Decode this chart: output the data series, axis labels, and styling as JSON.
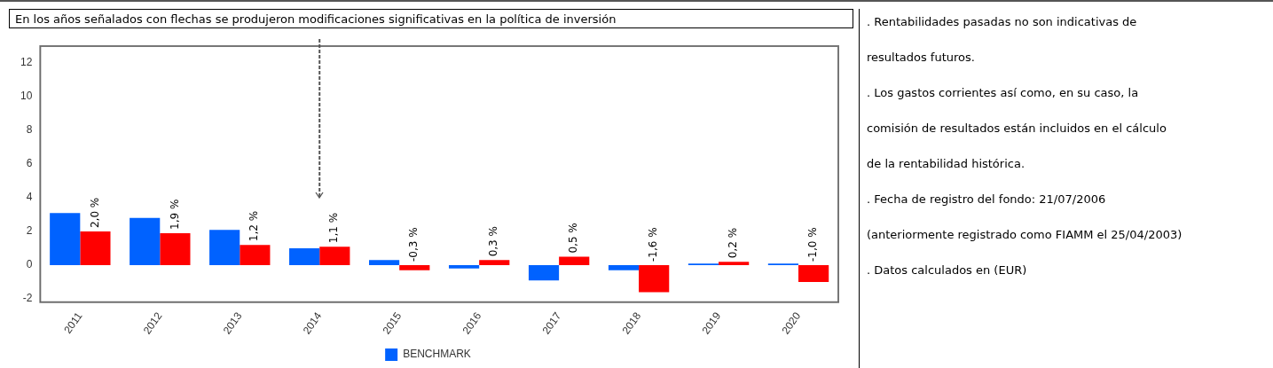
{
  "chart_data": {
    "type": "bar",
    "title": "En los años señalados con flechas se produjeron modificaciones significativas en la política de inversión",
    "categories": [
      "2011",
      "2012",
      "2013",
      "2014",
      "2015",
      "2016",
      "2017",
      "2018",
      "2019",
      "2020"
    ],
    "series": [
      {
        "name": "BENCHMARK",
        "color": "#0062ff",
        "values": [
          3.1,
          2.8,
          2.1,
          1.0,
          0.3,
          -0.2,
          -0.9,
          -0.3,
          0.1,
          0.1
        ]
      },
      {
        "color": "#ff0000",
        "values": [
          2.0,
          1.9,
          1.2,
          1.1,
          -0.3,
          0.3,
          0.5,
          -1.6,
          0.2,
          -1.0
        ],
        "value_labels": [
          "2,0 %",
          "1,9 %",
          "1,2 %",
          "1,1 %",
          "-0,3 %",
          "0,3 %",
          "0,5 %",
          "-1,6 %",
          "0,2 %",
          "-1,0 %"
        ]
      }
    ],
    "ylim": [
      -2.2,
      13
    ],
    "yticks": [
      -2,
      0,
      2,
      4,
      6,
      8,
      10,
      12
    ],
    "grid": false,
    "legend": "bottom",
    "ref_lines": [
      {
        "axis": "x",
        "value": "2014",
        "line_style": "dashed",
        "color": "#555555"
      }
    ],
    "annotations": [
      ". Rentabilidades pasadas no son indicativas de",
      "resultados futuros.",
      ". Los gastos corrientes así como, en su caso, la",
      "comisión de resultados están incluidos en el cálculo",
      "de la rentabilidad histórica.",
      ". Fecha de registro del fondo: 21/07/2006",
      "(anteriormente registrado como FIAMM el 25/04/2003)",
      ". Datos calculados en (EUR)"
    ]
  }
}
